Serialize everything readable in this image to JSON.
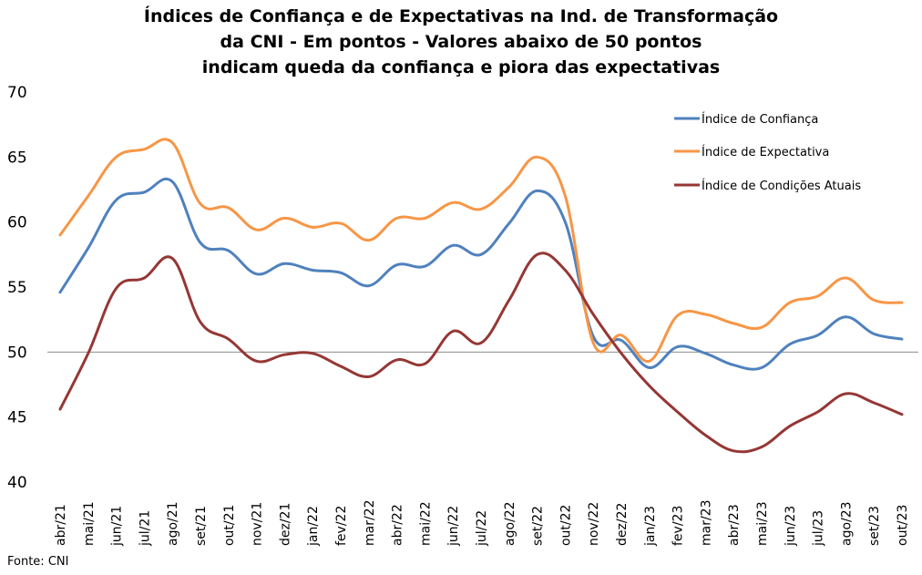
{
  "chart_data": {
    "type": "line",
    "title_lines": [
      "Índices de Confiança e de Expectativas na Ind. de Transformação",
      "da CNI - Em pontos - Valores abaixo de 50 pontos",
      "indicam queda da confiança e piora das expectativas"
    ],
    "categories": [
      "abr/21",
      "mai/21",
      "jun/21",
      "jul/21",
      "ago/21",
      "set/21",
      "out/21",
      "nov/21",
      "dez/21",
      "jan/22",
      "fev/22",
      "mar/22",
      "abr/22",
      "mai/22",
      "jun/22",
      "jul/22",
      "ago/22",
      "set/22",
      "out/22",
      "nov/22",
      "dez/22",
      "jan/23",
      "fev/23",
      "mar/23",
      "abr/23",
      "mai/23",
      "jun/23",
      "jul/23",
      "ago/23",
      "set/23",
      "out/23"
    ],
    "series": [
      {
        "name": "Índice de Confiança",
        "color": "#4f81bd",
        "values": [
          54.6,
          58.0,
          61.7,
          62.3,
          63.1,
          58.4,
          57.8,
          56.0,
          56.8,
          56.3,
          56.1,
          55.1,
          56.7,
          56.6,
          58.2,
          57.5,
          59.9,
          62.4,
          60.0,
          51.2,
          50.9,
          48.8,
          50.4,
          49.9,
          49.0,
          48.8,
          50.6,
          51.3,
          52.7,
          51.4,
          51.0
        ]
      },
      {
        "name": "Índice de Expectativa",
        "color": "#f79646",
        "values": [
          59.0,
          62.0,
          65.0,
          65.6,
          66.1,
          61.4,
          61.1,
          59.4,
          60.3,
          59.6,
          59.9,
          58.6,
          60.3,
          60.3,
          61.5,
          61.0,
          62.7,
          65.0,
          62.0,
          50.7,
          51.3,
          49.3,
          52.8,
          52.9,
          52.2,
          51.9,
          53.8,
          54.3,
          55.7,
          54.0,
          53.8
        ]
      },
      {
        "name": "Índice de Condições Atuais",
        "color": "#953735",
        "values": [
          45.6,
          49.9,
          54.9,
          55.7,
          57.2,
          52.3,
          51.0,
          49.3,
          49.8,
          49.9,
          48.9,
          48.1,
          49.4,
          49.1,
          51.6,
          50.7,
          54.0,
          57.5,
          56.3,
          52.9,
          49.9,
          47.4,
          45.4,
          43.6,
          42.4,
          42.7,
          44.3,
          45.4,
          46.8,
          46.1,
          45.2
        ]
      }
    ],
    "ylim": [
      40,
      70
    ],
    "yticks": [
      "40",
      "45",
      "50",
      "55",
      "60",
      "65",
      "70"
    ],
    "reference_line": 50,
    "grid": false,
    "legend_position": "top-right",
    "source": "Fonte: CNI"
  }
}
